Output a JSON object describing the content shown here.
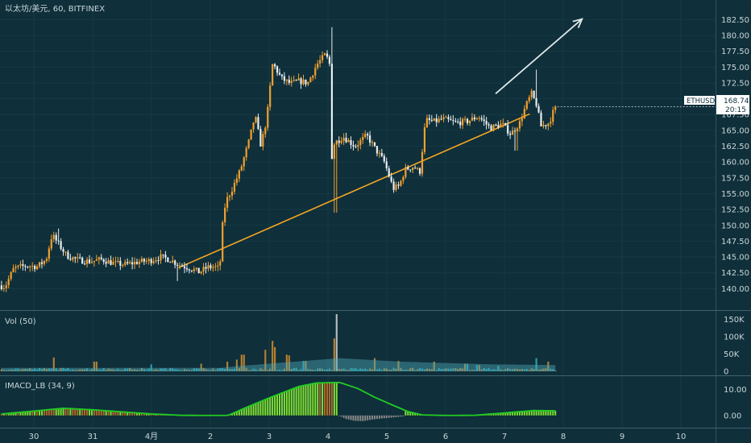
{
  "header": {
    "symbol_title": "以太坊/美元, 60, BITFINEX"
  },
  "price_tag": {
    "ticker": "ETHUSD",
    "price": "168.74",
    "countdown": "20:15"
  },
  "colors": {
    "background": "#0f2f3a",
    "up": "#f0a030",
    "down": "#e8eef0",
    "trendline": "#f5a623",
    "arrow": "#dfe8ea",
    "volume_ma": "#4fa8b8",
    "macd_line": "#22cc22",
    "macd_hist_pos": "#7fe030",
    "macd_hist_neg": "#888888"
  },
  "chart_data": [
    {
      "type": "candlestick",
      "title": "以太坊/美元, 60, BITFINEX",
      "x_tick_labels": [
        "30",
        "31",
        "4月",
        "2",
        "3",
        "4",
        "5",
        "6",
        "7",
        "8",
        "9",
        "10"
      ],
      "y_tick_labels": [
        "140.00",
        "142.50",
        "145.00",
        "147.50",
        "150.00",
        "152.50",
        "155.00",
        "157.50",
        "160.00",
        "162.50",
        "165.00",
        "167.50",
        "170.00",
        "172.50",
        "175.00",
        "177.50",
        "180.00",
        "182.50"
      ],
      "ylim": [
        138.2,
        183.5
      ],
      "last_price": 168.74,
      "trendline": {
        "from": [
          2.46,
          143.3
        ],
        "to": [
          8.43,
          167.6
        ]
      },
      "arrow": {
        "from": [
          7.85,
          170.8
        ],
        "to": [
          9.32,
          182.6
        ]
      },
      "anchors": [
        [
          -0.55,
          140.5
        ],
        [
          -0.45,
          140.3
        ],
        [
          -0.3,
          143.2
        ],
        [
          -0.1,
          143.6
        ],
        [
          0.1,
          143.5
        ],
        [
          0.25,
          144.6
        ],
        [
          0.35,
          148.5
        ],
        [
          0.45,
          147.2
        ],
        [
          0.6,
          145.2
        ],
        [
          0.8,
          144.5
        ],
        [
          1.0,
          144.3
        ],
        [
          1.2,
          144.6
        ],
        [
          1.4,
          144.0
        ],
        [
          1.6,
          143.8
        ],
        [
          1.8,
          144.2
        ],
        [
          2.0,
          144.4
        ],
        [
          2.2,
          145.0
        ],
        [
          2.35,
          144.6
        ],
        [
          2.5,
          143.8
        ],
        [
          2.7,
          143.2
        ],
        [
          2.85,
          142.6
        ],
        [
          3.0,
          143.4
        ],
        [
          3.12,
          143.4
        ],
        [
          3.2,
          143.2
        ],
        [
          3.25,
          150.2
        ],
        [
          3.3,
          153.7
        ],
        [
          3.4,
          155.5
        ],
        [
          3.55,
          158.7
        ],
        [
          3.7,
          163.4
        ],
        [
          3.8,
          167.4
        ],
        [
          3.9,
          162.6
        ],
        [
          4.0,
          166.8
        ],
        [
          4.1,
          175.6
        ],
        [
          4.25,
          173.2
        ],
        [
          4.4,
          172.4
        ],
        [
          4.55,
          172.8
        ],
        [
          4.7,
          172.5
        ],
        [
          4.85,
          175.4
        ],
        [
          5.0,
          177.0
        ],
        [
          5.08,
          175.2
        ],
        [
          5.1,
          160.5
        ],
        [
          5.15,
          163.0
        ],
        [
          5.3,
          164.0
        ],
        [
          5.5,
          162.5
        ],
        [
          5.7,
          164.2
        ],
        [
          5.85,
          162.0
        ],
        [
          6.0,
          160.0
        ],
        [
          6.15,
          155.8
        ],
        [
          6.25,
          156.2
        ],
        [
          6.35,
          158.8
        ],
        [
          6.5,
          159.3
        ],
        [
          6.6,
          158.3
        ],
        [
          6.7,
          166.6
        ],
        [
          6.85,
          166.4
        ],
        [
          7.0,
          166.8
        ],
        [
          7.2,
          166.2
        ],
        [
          7.4,
          166.4
        ],
        [
          7.6,
          167.2
        ],
        [
          7.8,
          165.4
        ],
        [
          8.0,
          166.0
        ],
        [
          8.15,
          164.4
        ],
        [
          8.3,
          166.2
        ],
        [
          8.4,
          168.8
        ],
        [
          8.5,
          170.8
        ],
        [
          8.6,
          168.8
        ],
        [
          8.65,
          165.6
        ],
        [
          8.8,
          166.2
        ],
        [
          8.9,
          168.7
        ]
      ],
      "spike_highs": [
        [
          0.42,
          149.5
        ],
        [
          5.08,
          181.3
        ],
        [
          8.55,
          174.6
        ]
      ],
      "spike_lows": [
        [
          5.13,
          152.0
        ],
        [
          2.45,
          141.2
        ],
        [
          8.2,
          161.8
        ]
      ]
    },
    {
      "type": "bar",
      "title": "Vol (50)",
      "y_tick_labels": [
        "0",
        "50K",
        "100K",
        "150K"
      ],
      "ylim": [
        0,
        165
      ],
      "unit": "K",
      "spikes": [
        [
          5.15,
          165
        ],
        [
          5.1,
          95
        ],
        [
          4.05,
          88
        ],
        [
          4.1,
          70
        ],
        [
          3.95,
          62
        ],
        [
          4.3,
          48
        ],
        [
          4.35,
          46
        ],
        [
          4.6,
          30
        ],
        [
          3.55,
          48
        ],
        [
          3.45,
          34
        ],
        [
          3.3,
          28
        ],
        [
          1.05,
          28
        ],
        [
          0.35,
          40
        ],
        [
          5.8,
          38
        ],
        [
          6.2,
          30
        ],
        [
          6.8,
          28
        ],
        [
          7.35,
          22
        ],
        [
          8.55,
          38
        ],
        [
          8.75,
          28
        ],
        [
          7.55,
          18
        ],
        [
          7.9,
          16
        ],
        [
          2.85,
          22
        ],
        [
          2.0,
          20
        ]
      ],
      "ma_points": [
        [
          -0.55,
          10
        ],
        [
          3.2,
          10
        ],
        [
          3.4,
          14
        ],
        [
          4.0,
          22
        ],
        [
          4.6,
          30
        ],
        [
          5.2,
          38
        ],
        [
          5.6,
          34
        ],
        [
          6.2,
          28
        ],
        [
          7.0,
          24
        ],
        [
          7.8,
          20
        ],
        [
          8.4,
          19
        ],
        [
          8.9,
          18
        ]
      ]
    },
    {
      "type": "bar",
      "title": "IMACD_LB (34, 9)",
      "y_tick_labels": [
        "0.00",
        "10.00"
      ],
      "ylim": [
        -3.5,
        14.6
      ],
      "points": [
        [
          -0.55,
          0.6
        ],
        [
          0.0,
          1.7
        ],
        [
          0.5,
          2.8
        ],
        [
          1.0,
          2.2
        ],
        [
          1.5,
          1.4
        ],
        [
          2.0,
          0.6
        ],
        [
          2.5,
          0.05
        ],
        [
          3.0,
          0.0
        ],
        [
          3.3,
          0.0
        ],
        [
          3.6,
          3.0
        ],
        [
          4.0,
          6.8
        ],
        [
          4.5,
          11.2
        ],
        [
          4.8,
          12.6
        ],
        [
          5.2,
          12.8
        ],
        [
          5.5,
          10.5
        ],
        [
          5.8,
          7.0
        ],
        [
          6.1,
          4.0
        ],
        [
          6.35,
          1.6
        ],
        [
          6.6,
          0.2
        ],
        [
          7.0,
          0.0
        ],
        [
          7.5,
          0.05
        ],
        [
          8.0,
          1.0
        ],
        [
          8.5,
          1.9
        ],
        [
          8.9,
          1.8
        ]
      ],
      "negative_histogram": [
        [
          5.15,
          0.4
        ],
        [
          5.3,
          -1.3
        ],
        [
          5.45,
          -2.1
        ],
        [
          5.6,
          -2.2
        ],
        [
          5.75,
          -1.6
        ],
        [
          5.9,
          -1.2
        ],
        [
          6.1,
          -0.8
        ],
        [
          6.3,
          -0.3
        ]
      ]
    }
  ]
}
